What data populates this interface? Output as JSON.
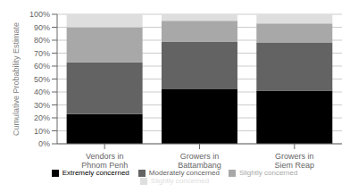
{
  "chart_data": {
    "type": "bar",
    "stacked": true,
    "categories": [
      "Vendors in\nPhnom Penh",
      "Growers in\nBattambang",
      "Growers in\nSiem Reap"
    ],
    "series": [
      {
        "name": "Extremely concerned",
        "color": "#000000",
        "values": [
          23,
          42,
          41
        ]
      },
      {
        "name": "Moderately concerned",
        "color": "#636363",
        "values": [
          40,
          37,
          37
        ]
      },
      {
        "name": "Slightly concerned",
        "color": "#a8a8a8",
        "values": [
          27,
          16,
          15
        ]
      },
      {
        "name": "Slightly concerned",
        "color": "#dedede",
        "values": [
          10,
          5,
          7
        ]
      }
    ],
    "y_label": "Cumulative Probability Estimate",
    "ylim": [
      0,
      100
    ],
    "yticks": [
      {
        "value": 0,
        "label": "0%"
      },
      {
        "value": 10,
        "label": "10%"
      },
      {
        "value": 20,
        "label": "20%"
      },
      {
        "value": 30,
        "label": "30%"
      },
      {
        "value": 40,
        "label": "40%"
      },
      {
        "value": 50,
        "label": "50%"
      },
      {
        "value": 60,
        "label": "60%"
      },
      {
        "value": 70,
        "label": "70%"
      },
      {
        "value": 80,
        "label": "80%"
      },
      {
        "value": 90,
        "label": "90%"
      },
      {
        "value": 100,
        "label": "100%"
      }
    ],
    "grid": true,
    "legend": "bottom"
  }
}
